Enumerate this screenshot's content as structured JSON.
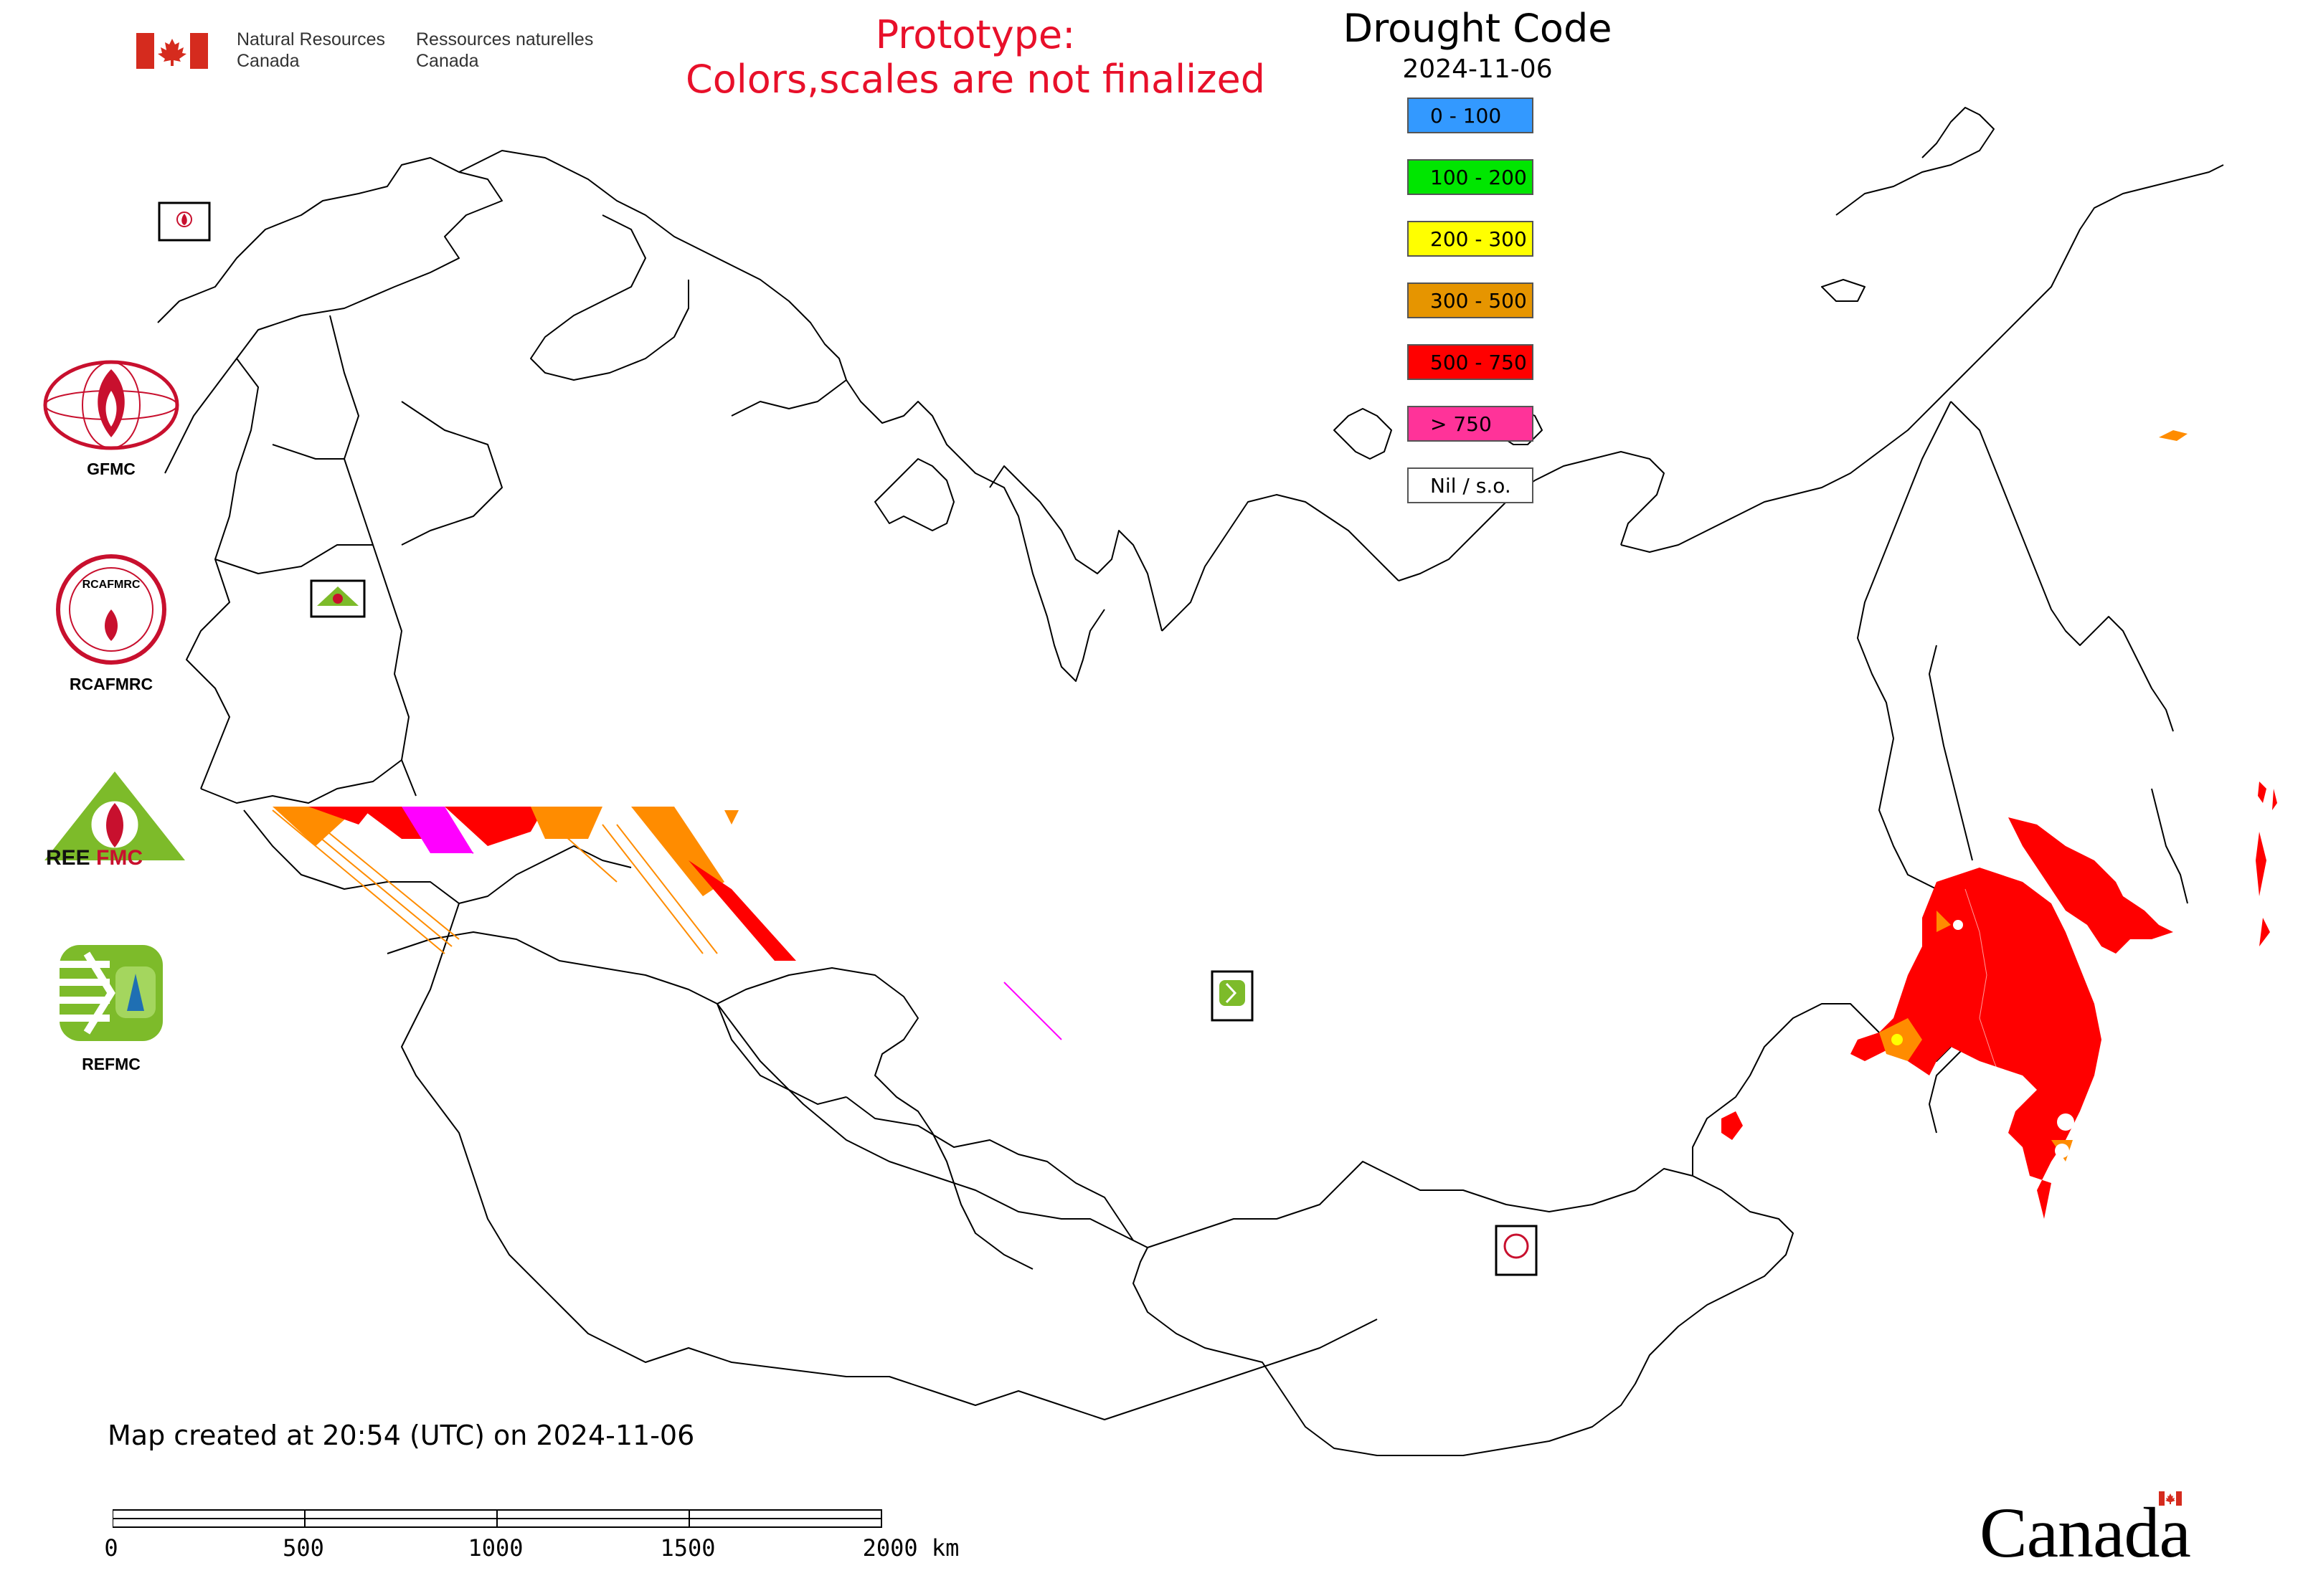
{
  "header": {
    "org_en_line1": "Natural Resources",
    "org_en_line2": "Canada",
    "org_fr_line1": "Ressources naturelles",
    "org_fr_line2": "Canada",
    "prototype_line1": "Prototype:",
    "prototype_line2": "Colors,scales are not finalized"
  },
  "legend": {
    "title": "Drought Code",
    "date": "2024-11-06",
    "items": [
      {
        "label": "0 - 100",
        "color": "#3399ff"
      },
      {
        "label": "100 - 200",
        "color": "#00e600"
      },
      {
        "label": "200 - 300",
        "color": "#ffff00"
      },
      {
        "label": "300 - 500",
        "color": "#e69500"
      },
      {
        "label": "500 - 750",
        "color": "#ff0000"
      },
      {
        "label": "> 750",
        "color": "#ff3399"
      },
      {
        "label": "Nil / s.o.",
        "color": "#ffffff"
      }
    ]
  },
  "logos": {
    "gfmc": "GFMC",
    "rcafmrc": "RCAFMRC",
    "reefmc": "REEFMC",
    "refmc": "REFMC"
  },
  "footer": {
    "created": "Map created at 20:54 (UTC) on 2024-11-06",
    "scale_labels": [
      "0",
      "500",
      "1000",
      "1500",
      "2000 km"
    ],
    "wordmark": "Canada"
  }
}
